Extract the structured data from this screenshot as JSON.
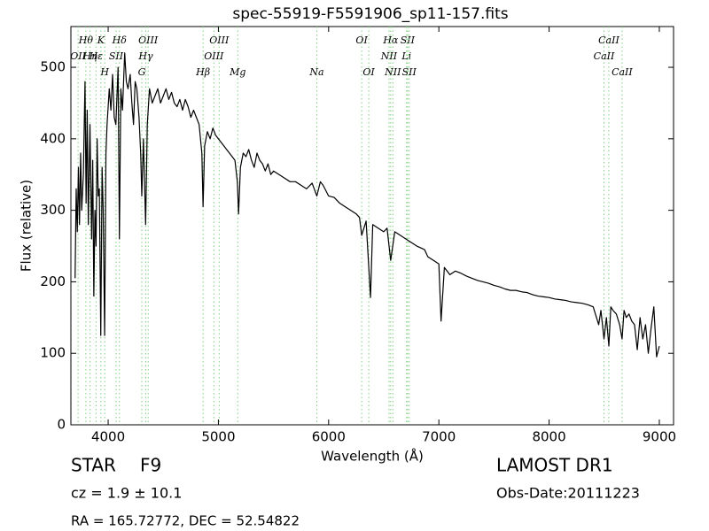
{
  "chart_data": {
    "type": "line",
    "title": "spec-55919-F5591906_sp11-157.fits",
    "xlabel": "Wavelength (Å)",
    "ylabel": "Flux (relative)",
    "x": [
      3700,
      3710,
      3720,
      3730,
      3740,
      3750,
      3760,
      3775,
      3790,
      3800,
      3810,
      3820,
      3835,
      3850,
      3860,
      3870,
      3880,
      3890,
      3900,
      3910,
      3920,
      3933,
      3945,
      3955,
      3968,
      3980,
      3990,
      4010,
      4025,
      4040,
      4055,
      4070,
      4090,
      4102,
      4115,
      4130,
      4150,
      4165,
      4180,
      4200,
      4215,
      4230,
      4245,
      4260,
      4280,
      4295,
      4305,
      4320,
      4340,
      4355,
      4375,
      4400,
      4425,
      4450,
      4475,
      4500,
      4525,
      4550,
      4575,
      4600,
      4625,
      4650,
      4675,
      4700,
      4725,
      4750,
      4775,
      4800,
      4825,
      4850,
      4861,
      4875,
      4900,
      4925,
      4950,
      4975,
      5000,
      5025,
      5050,
      5075,
      5100,
      5125,
      5150,
      5172,
      5183,
      5200,
      5225,
      5250,
      5275,
      5300,
      5325,
      5350,
      5375,
      5400,
      5425,
      5450,
      5475,
      5500,
      5550,
      5600,
      5650,
      5700,
      5750,
      5800,
      5850,
      5893,
      5925,
      5950,
      6000,
      6050,
      6100,
      6150,
      6200,
      6250,
      6280,
      6300,
      6340,
      6380,
      6400,
      6450,
      6500,
      6530,
      6563,
      6600,
      6650,
      6700,
      6750,
      6800,
      6870,
      6900,
      6950,
      7000,
      7020,
      7050,
      7100,
      7150,
      7200,
      7250,
      7300,
      7350,
      7400,
      7450,
      7500,
      7550,
      7600,
      7650,
      7700,
      7750,
      7800,
      7850,
      7900,
      7950,
      8000,
      8050,
      8100,
      8150,
      8200,
      8250,
      8300,
      8350,
      8400,
      8430,
      8450,
      8470,
      8498,
      8520,
      8542,
      8560,
      8580,
      8610,
      8640,
      8662,
      8680,
      8700,
      8725,
      8750,
      8775,
      8800,
      8825,
      8850,
      8875,
      8900,
      8925,
      8950,
      8975,
      9000
    ],
    "series": [
      {
        "name": "Flux",
        "color": "#000000",
        "values": [
          205,
          330,
          270,
          360,
          280,
          380,
          300,
          350,
          480,
          310,
          440,
          280,
          420,
          260,
          370,
          180,
          300,
          250,
          400,
          320,
          330,
          125,
          360,
          300,
          125,
          380,
          420,
          470,
          440,
          490,
          430,
          420,
          500,
          260,
          470,
          440,
          520,
          480,
          470,
          490,
          450,
          420,
          480,
          470,
          430,
          380,
          320,
          400,
          280,
          420,
          470,
          450,
          460,
          470,
          450,
          460,
          470,
          455,
          465,
          450,
          445,
          455,
          440,
          455,
          445,
          430,
          440,
          430,
          420,
          380,
          305,
          390,
          410,
          400,
          415,
          405,
          400,
          395,
          390,
          385,
          380,
          375,
          370,
          340,
          295,
          360,
          380,
          375,
          385,
          370,
          360,
          380,
          370,
          365,
          355,
          365,
          350,
          355,
          350,
          345,
          340,
          340,
          335,
          330,
          338,
          320,
          340,
          335,
          320,
          318,
          310,
          305,
          300,
          295,
          290,
          265,
          285,
          178,
          280,
          275,
          270,
          275,
          230,
          270,
          265,
          260,
          255,
          250,
          245,
          235,
          230,
          225,
          145,
          220,
          210,
          215,
          212,
          208,
          205,
          202,
          200,
          198,
          195,
          193,
          190,
          188,
          188,
          186,
          185,
          182,
          180,
          179,
          178,
          176,
          175,
          174,
          172,
          171,
          170,
          168,
          165,
          150,
          140,
          160,
          120,
          150,
          110,
          165,
          160,
          155,
          140,
          120,
          160,
          150,
          155,
          145,
          140,
          105,
          150,
          120,
          140,
          100,
          135,
          165,
          95,
          110
        ]
      }
    ],
    "spectral_lines": [
      {
        "label": "Hθ",
        "wavelength": 3798
      },
      {
        "label": "OII",
        "wavelength": 3727
      },
      {
        "label": "H",
        "wavelength": 3969
      },
      {
        "label": "K",
        "wavelength": 3934
      },
      {
        "label": "Hη",
        "wavelength": 3836
      },
      {
        "label": "G",
        "wavelength": 4305
      },
      {
        "label": "Hδ",
        "wavelength": 4102
      },
      {
        "label": "Hε",
        "wavelength": 3890
      },
      {
        "label": "Hβ",
        "wavelength": 4861
      },
      {
        "label": "OIII",
        "wavelength": 4363
      },
      {
        "label": "SII",
        "wavelength": 4072
      },
      {
        "label": "Mg",
        "wavelength": 5176
      },
      {
        "label": "OIII",
        "wavelength": 5007
      },
      {
        "label": "Hγ",
        "wavelength": 4341
      },
      {
        "label": "Na",
        "wavelength": 5893
      },
      {
        "label": "OI",
        "wavelength": 6300
      },
      {
        "label": "OIII",
        "wavelength": 4959
      },
      {
        "label": "OI",
        "wavelength": 6364
      },
      {
        "label": "Hα",
        "wavelength": 6563
      },
      {
        "label": "NII",
        "wavelength": 6548
      },
      {
        "label": "NII",
        "wavelength": 6583
      },
      {
        "label": "SII",
        "wavelength": 6716
      },
      {
        "label": "Li",
        "wavelength": 6707
      },
      {
        "label": "SII",
        "wavelength": 6731
      },
      {
        "label": "CaII",
        "wavelength": 8542
      },
      {
        "label": "CaII",
        "wavelength": 8498
      },
      {
        "label": "CaII",
        "wavelength": 8662
      }
    ],
    "spectral_line_color": "#7fcf7f",
    "xlim": [
      3662,
      9129
    ],
    "ylim": [
      0,
      557
    ],
    "xticks": [
      4000,
      5000,
      6000,
      7000,
      8000,
      9000
    ],
    "yticks": [
      0,
      100,
      200,
      300,
      400,
      500
    ],
    "grid": false
  },
  "footer": {
    "object_class": "STAR",
    "subclass": "F9",
    "survey": "LAMOST DR1",
    "redshift": "cz = 1.9 ± 10.1",
    "obs_date": "Obs-Date:20111223",
    "coordinates": "RA = 165.72772, DEC = 52.54822"
  }
}
